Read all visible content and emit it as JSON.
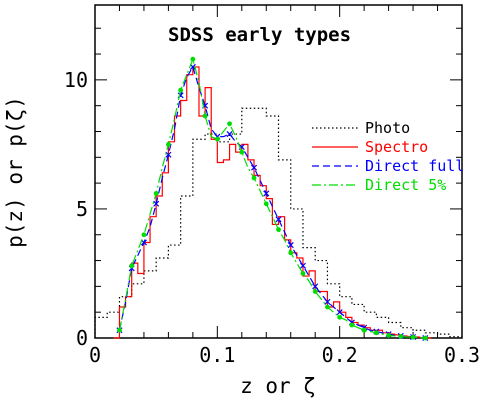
{
  "chart_data": {
    "type": "line",
    "title": "SDSS early types",
    "xlabel": "z or ζ",
    "ylabel": "p(z) or p(ζ)",
    "xlim": [
      0,
      0.3
    ],
    "ylim": [
      0,
      13
    ],
    "x_ticks": [
      "0",
      "0.1",
      "0.2",
      "0.3"
    ],
    "y_ticks": [
      "0",
      "5",
      "10"
    ],
    "legend_position": "right-center",
    "series": [
      {
        "name": "Photo",
        "style": "step-dotted",
        "color": "#000000",
        "x": [
          0.0,
          0.01,
          0.02,
          0.03,
          0.04,
          0.05,
          0.06,
          0.07,
          0.08,
          0.09,
          0.1,
          0.11,
          0.12,
          0.13,
          0.14,
          0.15,
          0.16,
          0.17,
          0.18,
          0.19,
          0.2,
          0.21,
          0.22,
          0.23,
          0.24,
          0.25,
          0.26,
          0.27,
          0.28,
          0.29
        ],
        "y": [
          0.8,
          1.0,
          1.6,
          2.1,
          2.6,
          3.1,
          3.6,
          5.5,
          7.7,
          7.9,
          7.6,
          7.9,
          8.9,
          8.9,
          8.6,
          6.9,
          5.0,
          3.5,
          3.0,
          2.1,
          1.6,
          1.3,
          1.0,
          0.8,
          0.6,
          0.4,
          0.3,
          0.2,
          0.15,
          0.05
        ]
      },
      {
        "name": "Spectro",
        "style": "step-solid",
        "color": "#ff0000",
        "x": [
          0.015,
          0.02,
          0.025,
          0.03,
          0.035,
          0.04,
          0.045,
          0.05,
          0.055,
          0.06,
          0.065,
          0.07,
          0.075,
          0.08,
          0.085,
          0.09,
          0.095,
          0.1,
          0.105,
          0.11,
          0.115,
          0.12,
          0.125,
          0.13,
          0.135,
          0.14,
          0.145,
          0.15,
          0.155,
          0.16,
          0.165,
          0.17,
          0.175,
          0.18,
          0.185,
          0.19,
          0.195,
          0.2,
          0.205,
          0.21,
          0.215,
          0.22,
          0.225,
          0.23,
          0.235,
          0.24,
          0.245,
          0.25,
          0.255,
          0.26,
          0.265,
          0.27
        ],
        "y": [
          0.0,
          1.2,
          1.6,
          2.9,
          2.5,
          3.7,
          4.7,
          5.5,
          6.4,
          7.6,
          8.6,
          9.2,
          10.2,
          10.5,
          8.6,
          9.7,
          7.7,
          6.8,
          6.9,
          7.5,
          7.2,
          7.5,
          6.9,
          6.3,
          5.9,
          5.4,
          4.4,
          4.7,
          3.8,
          3.3,
          3.1,
          2.4,
          2.6,
          1.8,
          1.8,
          1.2,
          1.4,
          1.0,
          0.8,
          0.6,
          0.5,
          0.4,
          0.3,
          0.3,
          0.2,
          0.15,
          0.12,
          0.08,
          0.06,
          0.04,
          0.02,
          0.0
        ]
      },
      {
        "name": "Direct full",
        "style": "dashed",
        "color": "#0000ff",
        "x": [
          0.02,
          0.025,
          0.03,
          0.035,
          0.04,
          0.045,
          0.05,
          0.055,
          0.06,
          0.065,
          0.07,
          0.075,
          0.08,
          0.085,
          0.09,
          0.095,
          0.1,
          0.105,
          0.11,
          0.115,
          0.12,
          0.125,
          0.13,
          0.135,
          0.14,
          0.145,
          0.15,
          0.155,
          0.16,
          0.165,
          0.17,
          0.175,
          0.18,
          0.185,
          0.19,
          0.195,
          0.2,
          0.205,
          0.21,
          0.215,
          0.22,
          0.225,
          0.23,
          0.235,
          0.24,
          0.245,
          0.25,
          0.255,
          0.26,
          0.265,
          0.27
        ],
        "y": [
          0.3,
          1.4,
          2.7,
          3.2,
          3.7,
          4.3,
          5.2,
          6.2,
          7.1,
          8.1,
          9.4,
          10.1,
          10.5,
          9.7,
          9.0,
          8.1,
          7.8,
          7.8,
          7.9,
          7.6,
          7.4,
          7.0,
          6.6,
          6.1,
          5.6,
          5.1,
          4.6,
          4.1,
          3.6,
          3.2,
          2.8,
          2.4,
          2.0,
          1.7,
          1.4,
          1.2,
          1.0,
          0.8,
          0.6,
          0.5,
          0.4,
          0.3,
          0.25,
          0.2,
          0.15,
          0.1,
          0.08,
          0.06,
          0.04,
          0.02,
          0.0
        ]
      },
      {
        "name": "Direct 5%",
        "style": "dashdot",
        "color": "#00dd00",
        "x": [
          0.02,
          0.025,
          0.03,
          0.035,
          0.04,
          0.045,
          0.05,
          0.055,
          0.06,
          0.065,
          0.07,
          0.075,
          0.08,
          0.085,
          0.09,
          0.095,
          0.1,
          0.105,
          0.11,
          0.115,
          0.12,
          0.125,
          0.13,
          0.135,
          0.14,
          0.145,
          0.15,
          0.155,
          0.16,
          0.165,
          0.17,
          0.175,
          0.18,
          0.185,
          0.19,
          0.195,
          0.2,
          0.205,
          0.21,
          0.215,
          0.22,
          0.225,
          0.23,
          0.235,
          0.24,
          0.245,
          0.25,
          0.255,
          0.26,
          0.265,
          0.27
        ],
        "y": [
          0.3,
          1.5,
          2.8,
          3.4,
          4.0,
          4.8,
          5.6,
          6.6,
          7.5,
          8.5,
          9.6,
          10.2,
          10.8,
          9.9,
          8.6,
          7.8,
          7.7,
          8.0,
          8.3,
          7.8,
          7.2,
          6.6,
          6.2,
          5.7,
          5.2,
          4.7,
          4.2,
          3.8,
          3.3,
          2.9,
          2.5,
          2.2,
          1.8,
          1.5,
          1.2,
          1.0,
          0.8,
          0.7,
          0.5,
          0.4,
          0.3,
          0.25,
          0.2,
          0.15,
          0.1,
          0.08,
          0.06,
          0.04,
          0.03,
          0.02,
          0.0
        ]
      }
    ]
  }
}
